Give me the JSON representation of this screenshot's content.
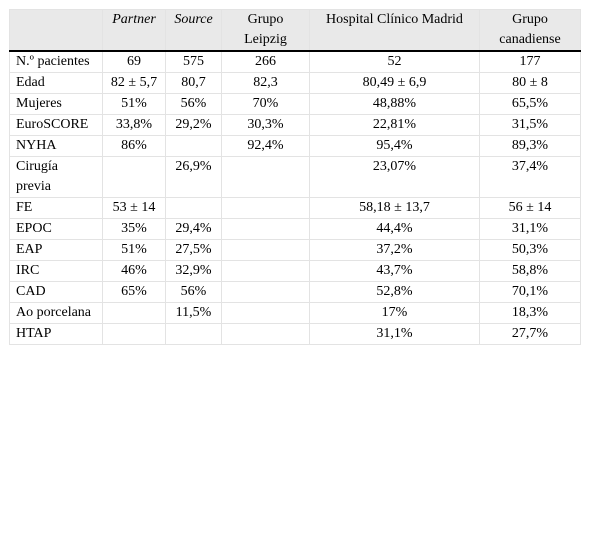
{
  "headers": [
    {
      "text": "",
      "italic": false
    },
    {
      "text": "Partner",
      "italic": true
    },
    {
      "text": "Source",
      "italic": true
    },
    {
      "text": "Grupo Leipzig",
      "italic": false
    },
    {
      "text": "Hospital Clínico Madrid",
      "italic": false
    },
    {
      "text": "Grupo canadiense",
      "italic": false
    }
  ],
  "rows": [
    [
      "N.º pacientes",
      "69",
      "575",
      "266",
      "52",
      "177"
    ],
    [
      "Edad",
      "82 ± 5,7",
      "80,7",
      "82,3",
      "80,49 ± 6,9",
      "80 ± 8"
    ],
    [
      "Mujeres",
      "51%",
      "56%",
      "70%",
      "48,88%",
      "65,5%"
    ],
    [
      "EuroSCORE",
      "33,8%",
      "29,2%",
      "30,3%",
      "22,81%",
      "31,5%"
    ],
    [
      "NYHA",
      "86%",
      "",
      "92,4%",
      "95,4%",
      "89,3%"
    ],
    [
      "Cirugía previa",
      "",
      "26,9%",
      "",
      "23,07%",
      "37,4%"
    ],
    [
      "FE",
      "53 ± 14",
      "",
      "",
      "58,18 ± 13,7",
      "56 ± 14"
    ],
    [
      "EPOC",
      "35%",
      "29,4%",
      "",
      "44,4%",
      "31,1%"
    ],
    [
      "EAP",
      "51%",
      "27,5%",
      "",
      "37,2%",
      "50,3%"
    ],
    [
      "IRC",
      "46%",
      "32,9%",
      "",
      "43,7%",
      "58,8%"
    ],
    [
      "CAD",
      "65%",
      "56%",
      "",
      "52,8%",
      "70,1%"
    ],
    [
      "Ao porcelana",
      "",
      "11,5%",
      "",
      "17%",
      "18,3%"
    ],
    [
      "HTAP",
      "",
      "",
      "",
      "31,1%",
      "27,7%"
    ]
  ]
}
